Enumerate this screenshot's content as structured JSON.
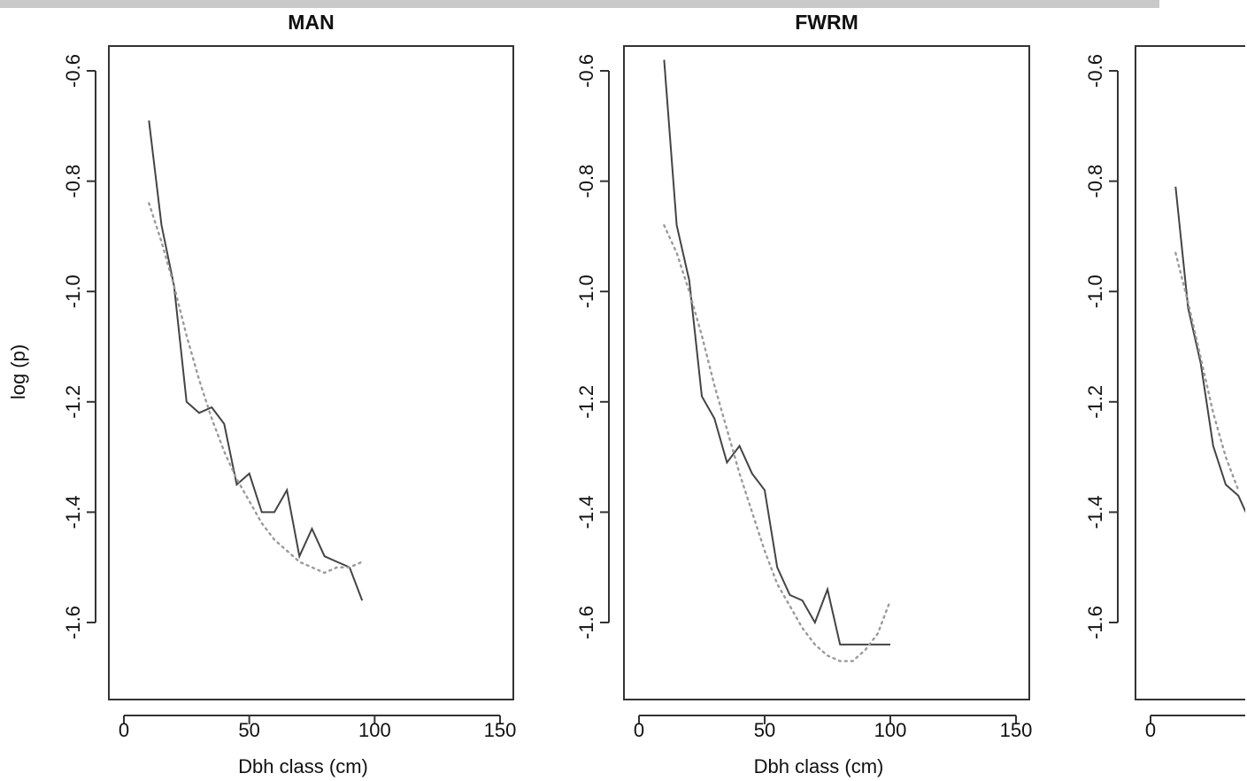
{
  "chart_data": [
    {
      "type": "line",
      "title": "MAN",
      "xlabel": "Dbh class (cm)",
      "ylabel": "log (p)",
      "xlim": [
        0,
        150
      ],
      "ylim": [
        -1.6,
        -0.6
      ],
      "xticks": [
        "0",
        "50",
        "100",
        "150"
      ],
      "yticks": [
        "-0.6",
        "-0.8",
        "-1.0",
        "-1.2",
        "-1.4",
        "-1.6"
      ],
      "series": [
        {
          "style": "solid",
          "x": [
            10,
            15,
            20,
            25,
            30,
            35,
            40,
            45,
            50,
            55,
            60,
            65,
            70,
            75,
            80,
            85,
            90,
            95
          ],
          "y": [
            -0.69,
            -0.88,
            -0.99,
            -1.2,
            -1.22,
            -1.21,
            -1.24,
            -1.35,
            -1.33,
            -1.4,
            -1.4,
            -1.36,
            -1.48,
            -1.43,
            -1.48,
            -1.49,
            -1.5,
            -1.56
          ]
        },
        {
          "style": "dotted",
          "x": [
            10,
            15,
            20,
            25,
            30,
            35,
            40,
            45,
            50,
            55,
            60,
            65,
            70,
            75,
            80,
            85,
            90,
            95
          ],
          "y": [
            -0.84,
            -0.91,
            -0.99,
            -1.08,
            -1.16,
            -1.23,
            -1.29,
            -1.34,
            -1.38,
            -1.42,
            -1.45,
            -1.47,
            -1.49,
            -1.5,
            -1.51,
            -1.5,
            -1.5,
            -1.49
          ]
        }
      ]
    },
    {
      "type": "line",
      "title": "FWRM",
      "xlabel": "Dbh class (cm)",
      "ylabel": "",
      "xlim": [
        0,
        150
      ],
      "ylim": [
        -1.6,
        -0.6
      ],
      "xticks": [
        "0",
        "50",
        "100",
        "150"
      ],
      "yticks": [
        "-0.6",
        "-0.8",
        "-1.0",
        "-1.2",
        "-1.4",
        "-1.6"
      ],
      "series": [
        {
          "style": "solid",
          "x": [
            10,
            15,
            20,
            25,
            30,
            35,
            40,
            45,
            50,
            55,
            60,
            65,
            70,
            75,
            80,
            85,
            90,
            95,
            100
          ],
          "y": [
            -0.58,
            -0.88,
            -0.98,
            -1.19,
            -1.23,
            -1.31,
            -1.28,
            -1.33,
            -1.36,
            -1.5,
            -1.55,
            -1.56,
            -1.6,
            -1.54,
            -1.64,
            -1.64,
            -1.64,
            -1.64,
            -1.64
          ]
        },
        {
          "style": "dotted",
          "x": [
            10,
            15,
            20,
            25,
            30,
            35,
            40,
            45,
            50,
            55,
            60,
            65,
            70,
            75,
            80,
            85,
            90,
            95,
            100
          ],
          "y": [
            -0.88,
            -0.93,
            -1.0,
            -1.08,
            -1.17,
            -1.25,
            -1.33,
            -1.4,
            -1.47,
            -1.53,
            -1.57,
            -1.61,
            -1.64,
            -1.66,
            -1.67,
            -1.67,
            -1.65,
            -1.62,
            -1.56
          ]
        }
      ]
    },
    {
      "type": "line",
      "title": "",
      "xlabel": "",
      "ylabel": "",
      "xlim": [
        0,
        150
      ],
      "ylim": [
        -1.6,
        -0.6
      ],
      "xticks": [
        "0"
      ],
      "yticks": [
        "-0.6",
        "-0.8",
        "-1.0",
        "-1.2",
        "-1.4",
        "-1.6"
      ],
      "series": [
        {
          "style": "solid",
          "x": [
            10,
            15,
            20,
            25,
            30,
            35,
            40
          ],
          "y": [
            -0.81,
            -1.03,
            -1.13,
            -1.28,
            -1.35,
            -1.37,
            -1.42
          ]
        },
        {
          "style": "dotted",
          "x": [
            10,
            15,
            20,
            25,
            30,
            35
          ],
          "y": [
            -0.93,
            -1.02,
            -1.12,
            -1.22,
            -1.3,
            -1.36
          ]
        }
      ]
    }
  ]
}
